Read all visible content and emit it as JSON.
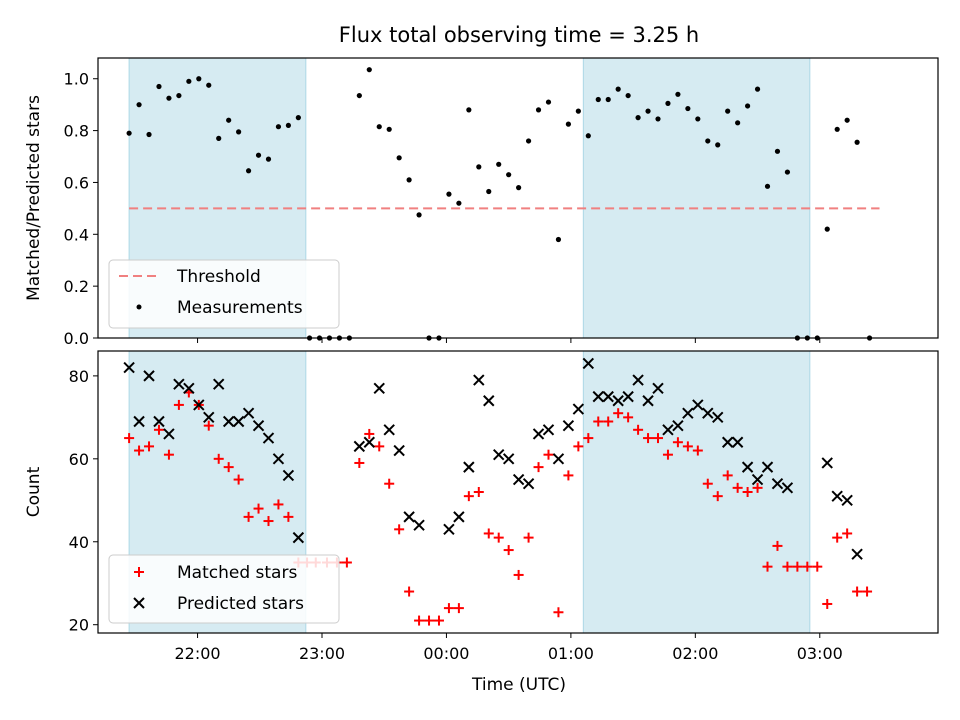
{
  "chart_data": [
    {
      "type": "scatter",
      "title": "Flux total observing time = 3.25 h",
      "xlabel": "",
      "ylabel": "Matched/Predicted stars",
      "x_unit": "hours since 21:00 UTC",
      "xlim": [
        0.2,
        6.95
      ],
      "ylim": [
        0,
        1.08
      ],
      "yticks": [
        "0.0",
        "0.2",
        "0.4",
        "0.6",
        "0.8",
        "1.0"
      ],
      "shaded_spans": [
        [
          0.45,
          1.87
        ],
        [
          4.1,
          5.92
        ]
      ],
      "legend": {
        "position": "lower-left",
        "entries": [
          "Threshold",
          "Measurements"
        ]
      },
      "threshold": {
        "name": "Threshold",
        "y": 0.5,
        "x": [
          0.45,
          6.48
        ],
        "color": "#f08080"
      },
      "series": [
        {
          "name": "Measurements",
          "color": "#000000",
          "points": [
            [
              0.45,
              0.79
            ],
            [
              0.53,
              0.9
            ],
            [
              0.61,
              0.785
            ],
            [
              0.69,
              0.97
            ],
            [
              0.77,
              0.925
            ],
            [
              0.85,
              0.935
            ],
            [
              0.93,
              0.99
            ],
            [
              1.01,
              1.0
            ],
            [
              1.09,
              0.975
            ],
            [
              1.17,
              0.77
            ],
            [
              1.25,
              0.84
            ],
            [
              1.33,
              0.795
            ],
            [
              1.41,
              0.645
            ],
            [
              1.49,
              0.705
            ],
            [
              1.57,
              0.69
            ],
            [
              1.65,
              0.815
            ],
            [
              1.73,
              0.82
            ],
            [
              1.81,
              0.85
            ],
            [
              1.9,
              0.0
            ],
            [
              1.98,
              0.0
            ],
            [
              2.06,
              0.0
            ],
            [
              2.14,
              0.0
            ],
            [
              2.22,
              0.0
            ],
            [
              2.3,
              0.935
            ],
            [
              2.38,
              1.035
            ],
            [
              2.46,
              0.815
            ],
            [
              2.54,
              0.805
            ],
            [
              2.62,
              0.695
            ],
            [
              2.7,
              0.61
            ],
            [
              2.78,
              0.475
            ],
            [
              2.86,
              0.0
            ],
            [
              2.94,
              0.0
            ],
            [
              3.02,
              0.555
            ],
            [
              3.1,
              0.52
            ],
            [
              3.18,
              0.88
            ],
            [
              3.26,
              0.66
            ],
            [
              3.34,
              0.565
            ],
            [
              3.42,
              0.67
            ],
            [
              3.5,
              0.63
            ],
            [
              3.58,
              0.58
            ],
            [
              3.66,
              0.76
            ],
            [
              3.74,
              0.88
            ],
            [
              3.82,
              0.91
            ],
            [
              3.9,
              0.38
            ],
            [
              3.98,
              0.825
            ],
            [
              4.06,
              0.875
            ],
            [
              4.14,
              0.78
            ],
            [
              4.22,
              0.92
            ],
            [
              4.3,
              0.92
            ],
            [
              4.38,
              0.96
            ],
            [
              4.46,
              0.935
            ],
            [
              4.54,
              0.85
            ],
            [
              4.62,
              0.875
            ],
            [
              4.7,
              0.845
            ],
            [
              4.78,
              0.905
            ],
            [
              4.86,
              0.94
            ],
            [
              4.94,
              0.885
            ],
            [
              5.02,
              0.845
            ],
            [
              5.1,
              0.76
            ],
            [
              5.18,
              0.745
            ],
            [
              5.26,
              0.875
            ],
            [
              5.34,
              0.83
            ],
            [
              5.42,
              0.895
            ],
            [
              5.5,
              0.96
            ],
            [
              5.58,
              0.585
            ],
            [
              5.66,
              0.72
            ],
            [
              5.74,
              0.64
            ],
            [
              5.82,
              0.0
            ],
            [
              5.9,
              0.0
            ],
            [
              5.98,
              0.0
            ],
            [
              6.06,
              0.42
            ],
            [
              6.14,
              0.805
            ],
            [
              6.22,
              0.84
            ],
            [
              6.3,
              0.755
            ],
            [
              6.4,
              0.0
            ]
          ]
        }
      ]
    },
    {
      "type": "scatter",
      "title": "",
      "xlabel": "Time (UTC)",
      "ylabel": "Count",
      "x_unit": "hours since 21:00 UTC",
      "xlim": [
        0.2,
        6.95
      ],
      "ylim": [
        18,
        86
      ],
      "yticks": [
        "20",
        "40",
        "60",
        "80"
      ],
      "xticks": [
        {
          "x": 1,
          "label": "22:00"
        },
        {
          "x": 2,
          "label": "23:00"
        },
        {
          "x": 3,
          "label": "00:00"
        },
        {
          "x": 4,
          "label": "01:00"
        },
        {
          "x": 5,
          "label": "02:00"
        },
        {
          "x": 6,
          "label": "03:00"
        }
      ],
      "shaded_spans": [
        [
          0.45,
          1.87
        ],
        [
          4.1,
          5.92
        ]
      ],
      "legend": {
        "position": "lower-left",
        "entries": [
          "Matched stars",
          "Predicted stars"
        ]
      },
      "series": [
        {
          "name": "Matched stars",
          "marker": "plus",
          "color": "#ff0000",
          "points": [
            [
              0.45,
              65
            ],
            [
              0.53,
              62
            ],
            [
              0.61,
              63
            ],
            [
              0.69,
              67
            ],
            [
              0.77,
              61
            ],
            [
              0.85,
              73
            ],
            [
              0.93,
              76
            ],
            [
              1.01,
              73
            ],
            [
              1.09,
              68
            ],
            [
              1.17,
              60
            ],
            [
              1.25,
              58
            ],
            [
              1.33,
              55
            ],
            [
              1.41,
              46
            ],
            [
              1.49,
              48
            ],
            [
              1.57,
              45
            ],
            [
              1.65,
              49
            ],
            [
              1.73,
              46
            ],
            [
              1.81,
              35
            ],
            [
              1.88,
              35
            ],
            [
              1.95,
              35
            ],
            [
              2.04,
              35
            ],
            [
              2.12,
              35
            ],
            [
              2.2,
              35
            ],
            [
              2.3,
              59
            ],
            [
              2.38,
              66
            ],
            [
              2.46,
              63
            ],
            [
              2.54,
              54
            ],
            [
              2.62,
              43
            ],
            [
              2.7,
              28
            ],
            [
              2.78,
              21
            ],
            [
              2.86,
              21
            ],
            [
              2.94,
              21
            ],
            [
              3.02,
              24
            ],
            [
              3.1,
              24
            ],
            [
              3.18,
              51
            ],
            [
              3.26,
              52
            ],
            [
              3.34,
              42
            ],
            [
              3.42,
              41
            ],
            [
              3.5,
              38
            ],
            [
              3.58,
              32
            ],
            [
              3.66,
              41
            ],
            [
              3.74,
              58
            ],
            [
              3.82,
              61
            ],
            [
              3.9,
              23
            ],
            [
              3.98,
              56
            ],
            [
              4.06,
              63
            ],
            [
              4.14,
              65
            ],
            [
              4.22,
              69
            ],
            [
              4.3,
              69
            ],
            [
              4.38,
              71
            ],
            [
              4.46,
              70
            ],
            [
              4.54,
              67
            ],
            [
              4.62,
              65
            ],
            [
              4.7,
              65
            ],
            [
              4.78,
              61
            ],
            [
              4.86,
              64
            ],
            [
              4.94,
              63
            ],
            [
              5.02,
              62
            ],
            [
              5.1,
              54
            ],
            [
              5.18,
              51
            ],
            [
              5.26,
              56
            ],
            [
              5.34,
              53
            ],
            [
              5.42,
              52
            ],
            [
              5.5,
              53
            ],
            [
              5.58,
              34
            ],
            [
              5.66,
              39
            ],
            [
              5.74,
              34
            ],
            [
              5.82,
              34
            ],
            [
              5.9,
              34
            ],
            [
              5.98,
              34
            ],
            [
              6.06,
              25
            ],
            [
              6.14,
              41
            ],
            [
              6.22,
              42
            ],
            [
              6.3,
              28
            ],
            [
              6.38,
              28
            ]
          ]
        },
        {
          "name": "Predicted stars",
          "marker": "x",
          "color": "#000000",
          "points": [
            [
              0.45,
              82
            ],
            [
              0.53,
              69
            ],
            [
              0.61,
              80
            ],
            [
              0.69,
              69
            ],
            [
              0.77,
              66
            ],
            [
              0.85,
              78
            ],
            [
              0.93,
              77
            ],
            [
              1.01,
              73
            ],
            [
              1.09,
              70
            ],
            [
              1.17,
              78
            ],
            [
              1.25,
              69
            ],
            [
              1.33,
              69
            ],
            [
              1.41,
              71
            ],
            [
              1.49,
              68
            ],
            [
              1.57,
              65
            ],
            [
              1.65,
              60
            ],
            [
              1.73,
              56
            ],
            [
              1.81,
              41
            ],
            [
              2.3,
              63
            ],
            [
              2.38,
              64
            ],
            [
              2.46,
              77
            ],
            [
              2.54,
              67
            ],
            [
              2.62,
              62
            ],
            [
              2.7,
              46
            ],
            [
              2.78,
              44
            ],
            [
              3.02,
              43
            ],
            [
              3.1,
              46
            ],
            [
              3.18,
              58
            ],
            [
              3.26,
              79
            ],
            [
              3.34,
              74
            ],
            [
              3.42,
              61
            ],
            [
              3.5,
              60
            ],
            [
              3.58,
              55
            ],
            [
              3.66,
              54
            ],
            [
              3.74,
              66
            ],
            [
              3.82,
              67
            ],
            [
              3.9,
              60
            ],
            [
              3.98,
              68
            ],
            [
              4.06,
              72
            ],
            [
              4.14,
              83
            ],
            [
              4.22,
              75
            ],
            [
              4.3,
              75
            ],
            [
              4.38,
              74
            ],
            [
              4.46,
              75
            ],
            [
              4.54,
              79
            ],
            [
              4.62,
              74
            ],
            [
              4.7,
              77
            ],
            [
              4.78,
              67
            ],
            [
              4.86,
              68
            ],
            [
              4.94,
              71
            ],
            [
              5.02,
              73
            ],
            [
              5.1,
              71
            ],
            [
              5.18,
              70
            ],
            [
              5.26,
              64
            ],
            [
              5.34,
              64
            ],
            [
              5.42,
              58
            ],
            [
              5.5,
              55
            ],
            [
              5.58,
              58
            ],
            [
              5.66,
              54
            ],
            [
              5.74,
              53
            ],
            [
              6.06,
              59
            ],
            [
              6.14,
              51
            ],
            [
              6.22,
              50
            ],
            [
              6.3,
              37
            ]
          ]
        }
      ]
    }
  ]
}
